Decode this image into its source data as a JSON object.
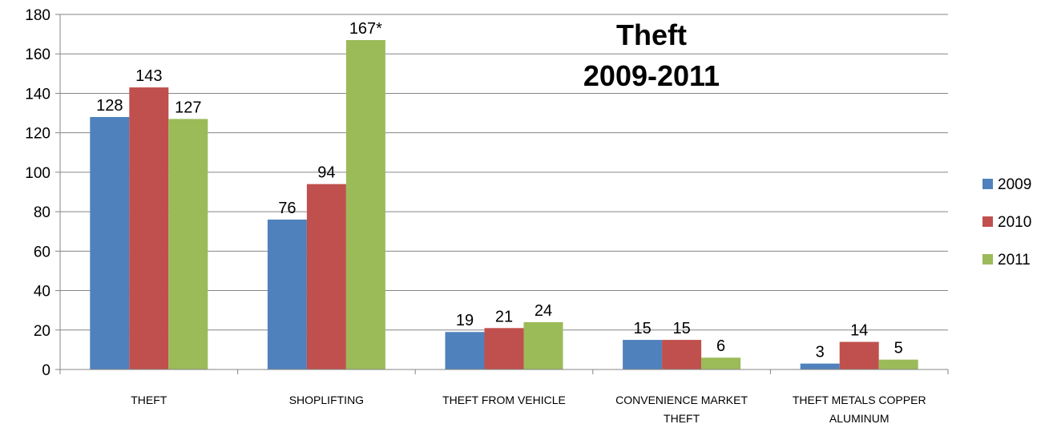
{
  "chart_data": {
    "type": "bar",
    "title_lines": [
      "Theft",
      "2009-2011"
    ],
    "categories": [
      [
        "THEFT"
      ],
      [
        "SHOPLIFTING"
      ],
      [
        "THEFT FROM VEHICLE"
      ],
      [
        "CONVENIENCE MARKET",
        "THEFT"
      ],
      [
        "THEFT METALS COPPER",
        "ALUMINUM"
      ]
    ],
    "series": [
      {
        "name": "2009",
        "color": "#4F81BD",
        "values": [
          128,
          76,
          19,
          15,
          3
        ],
        "labels": [
          "128",
          "76",
          "19",
          "15",
          "3"
        ]
      },
      {
        "name": "2010",
        "color": "#C0504D",
        "values": [
          143,
          94,
          21,
          15,
          14
        ],
        "labels": [
          "143",
          "94",
          "21",
          "15",
          "14"
        ]
      },
      {
        "name": "2011",
        "color": "#9BBB59",
        "values": [
          127,
          167,
          24,
          6,
          5
        ],
        "labels": [
          "127",
          "167*",
          "24",
          "6",
          "5"
        ]
      }
    ],
    "ylim": [
      0,
      180
    ],
    "yticks": [
      0,
      20,
      40,
      60,
      80,
      100,
      120,
      140,
      160,
      180
    ],
    "grid": true,
    "legend_position": "right"
  }
}
